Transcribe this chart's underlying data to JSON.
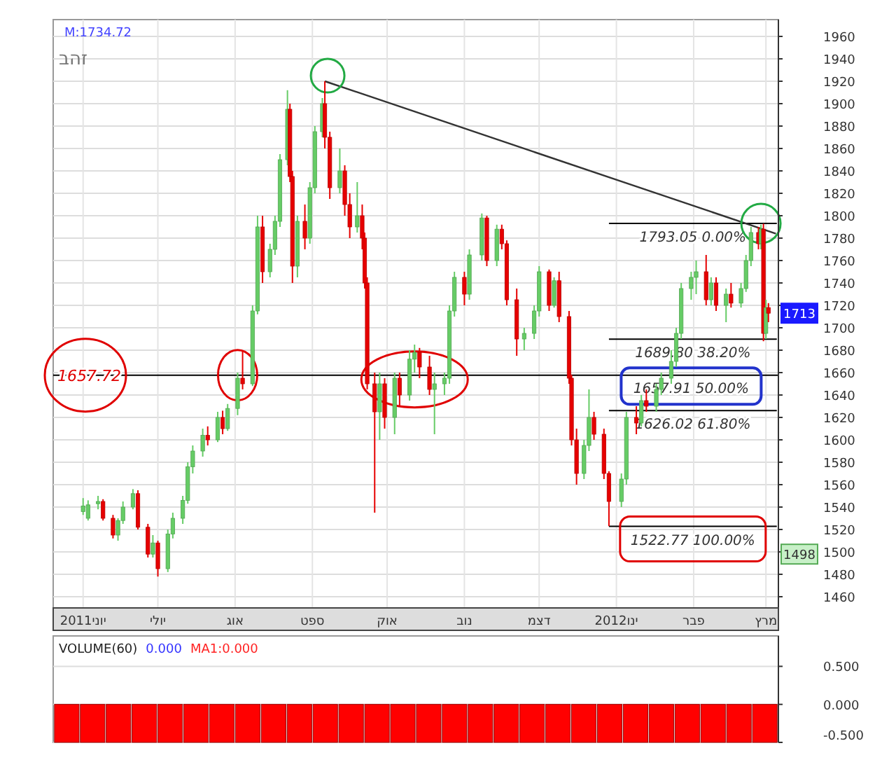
{
  "chart_data": [
    {
      "type": "candlestick",
      "title": "זהב",
      "annotations": [
        "M:1734.72",
        {
          "text": "1713",
          "y": 1713
        },
        {
          "text": "1498",
          "y": 1498
        },
        {
          "text": "1657.91 50.00%",
          "x": "2012-01-31",
          "y": 1657.91
        }
      ],
      "x": [
        "2011-06-01",
        "2011-06-03",
        "2011-06-07",
        "2011-06-09",
        "2011-06-13",
        "2011-06-15",
        "2011-06-17",
        "2011-06-21",
        "2011-06-23",
        "2011-06-27",
        "2011-06-29",
        "2011-07-01",
        "2011-07-05",
        "2011-07-07",
        "2011-07-11",
        "2011-07-13",
        "2011-07-15",
        "2011-07-19",
        "2011-07-21",
        "2011-07-25",
        "2011-07-27",
        "2011-07-29",
        "2011-08-02",
        "2011-08-04",
        "2011-08-08",
        "2011-08-10",
        "2011-08-12",
        "2011-08-15",
        "2011-08-17",
        "2011-08-19",
        "2011-08-22",
        "2011-08-23",
        "2011-08-24",
        "2011-08-26",
        "2011-08-29",
        "2011-08-31",
        "2011-09-02",
        "2011-09-05",
        "2011-09-06",
        "2011-09-08",
        "2011-09-12",
        "2011-09-14",
        "2011-09-16",
        "2011-09-19",
        "2011-09-21",
        "2011-09-22",
        "2011-09-23",
        "2011-09-26",
        "2011-09-28",
        "2011-09-30",
        "2011-10-04",
        "2011-10-06",
        "2011-10-10",
        "2011-10-12",
        "2011-10-14",
        "2011-10-18",
        "2011-10-20",
        "2011-10-24",
        "2011-10-26",
        "2011-10-28",
        "2011-11-01",
        "2011-11-03",
        "2011-11-08",
        "2011-11-10",
        "2011-11-14",
        "2011-11-16",
        "2011-11-18",
        "2011-11-22",
        "2011-11-25",
        "2011-11-29",
        "2011-12-01",
        "2011-12-05",
        "2011-12-07",
        "2011-12-09",
        "2011-12-13",
        "2011-12-14",
        "2011-12-16",
        "2011-12-19",
        "2011-12-21",
        "2011-12-23",
        "2011-12-27",
        "2011-12-29",
        "2012-01-03",
        "2012-01-05",
        "2012-01-09",
        "2012-01-11",
        "2012-01-13",
        "2012-01-17",
        "2012-01-19",
        "2012-01-23",
        "2012-01-25",
        "2012-01-27",
        "2012-01-31",
        "2012-02-02",
        "2012-02-06",
        "2012-02-08",
        "2012-02-10",
        "2012-02-14",
        "2012-02-16",
        "2012-02-20",
        "2012-02-22",
        "2012-02-24",
        "2012-02-27",
        "2012-02-28",
        "2012-02-29",
        "2012-03-01",
        "2012-03-02"
      ],
      "ohlc": [
        [
          1536,
          1548,
          1533,
          1541
        ],
        [
          1530,
          1546,
          1528,
          1542
        ],
        [
          1543,
          1550,
          1538,
          1545
        ],
        [
          1545,
          1547,
          1528,
          1530
        ],
        [
          1530,
          1533,
          1512,
          1515
        ],
        [
          1515,
          1530,
          1510,
          1528
        ],
        [
          1528,
          1545,
          1525,
          1540
        ],
        [
          1540,
          1556,
          1538,
          1552
        ],
        [
          1552,
          1555,
          1520,
          1522
        ],
        [
          1522,
          1525,
          1495,
          1498
        ],
        [
          1498,
          1515,
          1495,
          1508
        ],
        [
          1508,
          1510,
          1478,
          1485
        ],
        [
          1485,
          1520,
          1482,
          1516
        ],
        [
          1516,
          1535,
          1512,
          1530
        ],
        [
          1530,
          1550,
          1525,
          1546
        ],
        [
          1546,
          1580,
          1543,
          1576
        ],
        [
          1576,
          1595,
          1570,
          1590
        ],
        [
          1590,
          1610,
          1585,
          1604
        ],
        [
          1604,
          1612,
          1595,
          1600
        ],
        [
          1600,
          1625,
          1598,
          1620
        ],
        [
          1620,
          1626,
          1605,
          1610
        ],
        [
          1610,
          1632,
          1608,
          1628
        ],
        [
          1628,
          1660,
          1622,
          1655
        ],
        [
          1655,
          1680,
          1645,
          1650
        ],
        [
          1650,
          1720,
          1648,
          1715
        ],
        [
          1715,
          1800,
          1712,
          1790
        ],
        [
          1790,
          1800,
          1740,
          1750
        ],
        [
          1750,
          1775,
          1745,
          1770
        ],
        [
          1770,
          1800,
          1765,
          1795
        ],
        [
          1795,
          1855,
          1790,
          1850
        ],
        [
          1850,
          1912,
          1845,
          1895
        ],
        [
          1895,
          1900,
          1830,
          1835
        ],
        [
          1835,
          1840,
          1740,
          1755
        ],
        [
          1755,
          1800,
          1745,
          1795
        ],
        [
          1795,
          1810,
          1770,
          1780
        ],
        [
          1780,
          1830,
          1775,
          1825
        ],
        [
          1825,
          1880,
          1820,
          1875
        ],
        [
          1875,
          1905,
          1870,
          1900
        ],
        [
          1900,
          1920,
          1860,
          1870
        ],
        [
          1870,
          1875,
          1815,
          1825
        ],
        [
          1825,
          1860,
          1820,
          1840
        ],
        [
          1840,
          1845,
          1800,
          1810
        ],
        [
          1810,
          1820,
          1780,
          1790
        ],
        [
          1790,
          1830,
          1785,
          1800
        ],
        [
          1800,
          1810,
          1770,
          1780
        ],
        [
          1780,
          1785,
          1735,
          1740
        ],
        [
          1740,
          1745,
          1645,
          1650
        ],
        [
          1650,
          1660,
          1535,
          1625
        ],
        [
          1625,
          1660,
          1600,
          1650
        ],
        [
          1650,
          1655,
          1610,
          1620
        ],
        [
          1620,
          1660,
          1605,
          1655
        ],
        [
          1655,
          1660,
          1630,
          1640
        ],
        [
          1640,
          1680,
          1635,
          1672
        ],
        [
          1672,
          1685,
          1660,
          1678
        ],
        [
          1678,
          1682,
          1655,
          1665
        ],
        [
          1665,
          1675,
          1640,
          1645
        ],
        [
          1645,
          1660,
          1605,
          1650
        ],
        [
          1650,
          1660,
          1640,
          1655
        ],
        [
          1655,
          1720,
          1650,
          1715
        ],
        [
          1715,
          1750,
          1710,
          1745
        ],
        [
          1745,
          1750,
          1720,
          1730
        ],
        [
          1730,
          1770,
          1725,
          1765
        ],
        [
          1765,
          1802,
          1760,
          1798
        ],
        [
          1798,
          1800,
          1755,
          1760
        ],
        [
          1760,
          1792,
          1755,
          1788
        ],
        [
          1788,
          1792,
          1770,
          1775
        ],
        [
          1775,
          1778,
          1720,
          1725
        ],
        [
          1725,
          1735,
          1675,
          1690
        ],
        [
          1690,
          1700,
          1680,
          1695
        ],
        [
          1695,
          1720,
          1690,
          1715
        ],
        [
          1715,
          1755,
          1710,
          1750
        ],
        [
          1750,
          1752,
          1715,
          1720
        ],
        [
          1720,
          1745,
          1718,
          1742
        ],
        [
          1742,
          1750,
          1705,
          1710
        ],
        [
          1710,
          1715,
          1650,
          1655
        ],
        [
          1655,
          1658,
          1595,
          1600
        ],
        [
          1600,
          1610,
          1560,
          1570
        ],
        [
          1570,
          1600,
          1565,
          1595
        ],
        [
          1595,
          1645,
          1590,
          1620
        ],
        [
          1620,
          1625,
          1600,
          1605
        ],
        [
          1605,
          1610,
          1565,
          1570
        ],
        [
          1570,
          1572,
          1523,
          1545
        ],
        [
          1545,
          1570,
          1540,
          1565
        ],
        [
          1565,
          1625,
          1560,
          1620
        ],
        [
          1620,
          1630,
          1605,
          1615
        ],
        [
          1615,
          1640,
          1612,
          1635
        ],
        [
          1635,
          1645,
          1625,
          1630
        ],
        [
          1630,
          1650,
          1625,
          1645
        ],
        [
          1645,
          1660,
          1640,
          1655
        ],
        [
          1655,
          1680,
          1650,
          1670
        ],
        [
          1670,
          1700,
          1665,
          1695
        ],
        [
          1695,
          1740,
          1690,
          1735
        ],
        [
          1735,
          1750,
          1725,
          1745
        ],
        [
          1745,
          1760,
          1730,
          1750
        ],
        [
          1750,
          1765,
          1720,
          1725
        ],
        [
          1725,
          1745,
          1720,
          1740
        ],
        [
          1740,
          1745,
          1715,
          1720
        ],
        [
          1720,
          1735,
          1705,
          1730
        ],
        [
          1730,
          1740,
          1718,
          1722
        ],
        [
          1722,
          1740,
          1718,
          1735
        ],
        [
          1735,
          1765,
          1732,
          1760
        ],
        [
          1760,
          1790,
          1755,
          1785
        ],
        [
          1785,
          1790,
          1770,
          1775
        ],
        [
          1775,
          1792,
          1770,
          1788
        ],
        [
          1788,
          1793,
          1688,
          1695
        ],
        [
          1695,
          1725,
          1690,
          1718
        ],
        [
          1718,
          1722,
          1705,
          1713
        ]
      ],
      "colors": [
        "#66cc66",
        "#66cc66",
        "#66cc66",
        "#e60000",
        "#e60000",
        "#66cc66",
        "#66cc66",
        "#66cc66",
        "#e60000",
        "#e60000",
        "#66cc66",
        "#e60000",
        "#66cc66",
        "#66cc66",
        "#66cc66",
        "#66cc66",
        "#66cc66",
        "#66cc66",
        "#e60000",
        "#66cc66",
        "#e60000",
        "#66cc66",
        "#66cc66",
        "#e60000",
        "#66cc66",
        "#66cc66",
        "#e60000",
        "#66cc66",
        "#66cc66",
        "#66cc66",
        "#66cc66",
        "#e60000",
        "#e60000",
        "#66cc66",
        "#e60000",
        "#66cc66",
        "#66cc66",
        "#66cc66",
        "#e60000",
        "#e60000",
        "#66cc66",
        "#e60000",
        "#e60000",
        "#66cc66",
        "#e60000",
        "#e60000",
        "#e60000",
        "#e60000",
        "#66cc66",
        "#e60000",
        "#66cc66",
        "#e60000",
        "#66cc66",
        "#66cc66",
        "#e60000",
        "#e60000",
        "#66cc66",
        "#66cc66",
        "#66cc66",
        "#66cc66",
        "#e60000",
        "#66cc66",
        "#66cc66",
        "#e60000",
        "#66cc66",
        "#e60000",
        "#e60000",
        "#e60000",
        "#66cc66",
        "#66cc66",
        "#66cc66",
        "#e60000",
        "#66cc66",
        "#e60000",
        "#e60000",
        "#e60000",
        "#e60000",
        "#66cc66",
        "#66cc66",
        "#e60000",
        "#e60000",
        "#e60000",
        "#66cc66",
        "#66cc66",
        "#e60000",
        "#66cc66",
        "#e60000",
        "#66cc66",
        "#66cc66",
        "#66cc66",
        "#66cc66",
        "#66cc66",
        "#66cc66",
        "#66cc66",
        "#e60000",
        "#66cc66",
        "#e60000",
        "#66cc66",
        "#e60000",
        "#66cc66",
        "#66cc66",
        "#66cc66",
        "#e60000",
        "#66cc66",
        "#e60000",
        "#66cc66",
        "#e60000"
      ],
      "series": [
        {
          "type": "line",
          "x": [
            "2011-09-06",
            "2012-03-05"
          ],
          "values": [
            1920,
            1784
          ],
          "color": "#333333"
        }
      ],
      "ref_lines": [
        {
          "axis": "y",
          "value": 1657.72,
          "label": "1657.72",
          "color": "#000000"
        },
        {
          "axis": "y",
          "value": 1793.05,
          "label": "1793.05 0.00%",
          "color": "#000000"
        },
        {
          "axis": "y",
          "value": 1689.8,
          "label": "1689.80 38.20%",
          "color": "#000000"
        },
        {
          "axis": "y",
          "value": 1626.02,
          "label": "1626.02 61.80%",
          "color": "#000000"
        },
        {
          "axis": "y",
          "value": 1522.77,
          "label": "1522.77 100.00%",
          "color": "#000000"
        }
      ],
      "xlim": [
        "2011-05-20",
        "2012-03-06"
      ],
      "xticks": [
        {
          "value": "2011-06-01",
          "label": "2011יוני"
        },
        {
          "value": "2011-07-01",
          "label": "יולי"
        },
        {
          "value": "2011-08-01",
          "label": "אוג"
        },
        {
          "value": "2011-09-01",
          "label": "ספט"
        },
        {
          "value": "2011-10-01",
          "label": "אוק"
        },
        {
          "value": "2011-11-01",
          "label": "נוב"
        },
        {
          "value": "2011-12-01",
          "label": "דצמ"
        },
        {
          "value": "2012-01-01",
          "label": "2012ינו"
        },
        {
          "value": "2012-02-01",
          "label": "פבר"
        },
        {
          "value": "2012-03-01",
          "label": "מרץ"
        }
      ],
      "ylim": [
        1450,
        1975
      ],
      "yticks": [
        1460,
        1480,
        1500,
        1520,
        1540,
        1560,
        1580,
        1600,
        1620,
        1640,
        1660,
        1680,
        1700,
        1720,
        1740,
        1760,
        1780,
        1800,
        1820,
        1840,
        1860,
        1880,
        1900,
        1920,
        1940,
        1960
      ],
      "grid": true
    },
    {
      "type": "bar",
      "title": "VOLUME(60)",
      "annotations": [
        "0.000",
        "MA1:0.000"
      ],
      "categories": [
        null,
        null,
        null,
        null,
        null,
        null,
        null,
        null,
        null,
        null,
        null,
        null,
        null,
        null,
        null,
        null,
        null,
        null,
        null,
        null,
        null,
        null,
        null,
        null,
        null,
        null,
        null,
        null
      ],
      "values": [
        -0.5,
        -0.5,
        -0.5,
        -0.5,
        -0.5,
        -0.5,
        -0.5,
        -0.5,
        -0.5,
        -0.5,
        -0.5,
        -0.5,
        -0.5,
        -0.5,
        -0.5,
        -0.5,
        -0.5,
        -0.5,
        -0.5,
        -0.5,
        -0.5,
        -0.5,
        -0.5,
        -0.5,
        -0.5,
        -0.5,
        -0.5,
        -0.5
      ],
      "color": "#ff0000",
      "ylim": [
        -0.5,
        0.9
      ],
      "yticks": [
        {
          "value": 0.5,
          "label": "0.500"
        },
        {
          "value": 0,
          "label": "0.000"
        },
        {
          "value": -0.5,
          "label": "-0.500"
        }
      ],
      "grid": "y"
    }
  ]
}
